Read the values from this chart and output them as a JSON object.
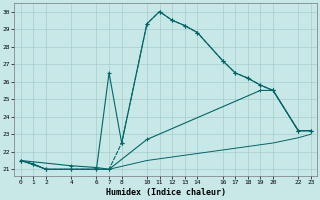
{
  "xlabel": "Humidex (Indice chaleur)",
  "bg_color": "#c8e8e8",
  "grid_color": "#a8cccc",
  "line_color": "#006666",
  "xlim": [
    -0.5,
    23.5
  ],
  "ylim": [
    20.6,
    30.5
  ],
  "xticks": [
    0,
    1,
    2,
    4,
    6,
    7,
    8,
    10,
    11,
    12,
    13,
    14,
    16,
    17,
    18,
    19,
    20,
    22,
    23
  ],
  "yticks": [
    21,
    22,
    23,
    24,
    25,
    26,
    27,
    28,
    29,
    30
  ],
  "line1_x": [
    0,
    1,
    2,
    4,
    6,
    7,
    8,
    10,
    11,
    12,
    13,
    14,
    16,
    17,
    18,
    19,
    20,
    22,
    23
  ],
  "line1_y": [
    21.5,
    21.3,
    21.0,
    21.0,
    21.0,
    26.5,
    22.5,
    29.3,
    30.0,
    29.5,
    29.2,
    28.8,
    27.2,
    26.5,
    26.2,
    25.8,
    25.5,
    23.2,
    23.2
  ],
  "line2_x": [
    0,
    1,
    2,
    4,
    6,
    7,
    8,
    10,
    11,
    12,
    13,
    14,
    16,
    17,
    18,
    19,
    20,
    22,
    23
  ],
  "line2_y": [
    21.5,
    21.3,
    21.0,
    21.0,
    21.0,
    21.0,
    22.5,
    29.3,
    30.0,
    29.5,
    29.2,
    28.8,
    27.2,
    26.5,
    26.2,
    25.8,
    25.5,
    23.2,
    23.2
  ],
  "line3_x": [
    0,
    4,
    6,
    7,
    10,
    19,
    20,
    22,
    23
  ],
  "line3_y": [
    21.5,
    21.2,
    21.1,
    21.0,
    22.7,
    25.5,
    25.5,
    23.2,
    23.2
  ],
  "line4_x": [
    0,
    2,
    4,
    6,
    7,
    10,
    20,
    22,
    23
  ],
  "line4_y": [
    21.5,
    21.0,
    21.0,
    21.0,
    21.0,
    21.5,
    22.5,
    22.8,
    23.0
  ]
}
